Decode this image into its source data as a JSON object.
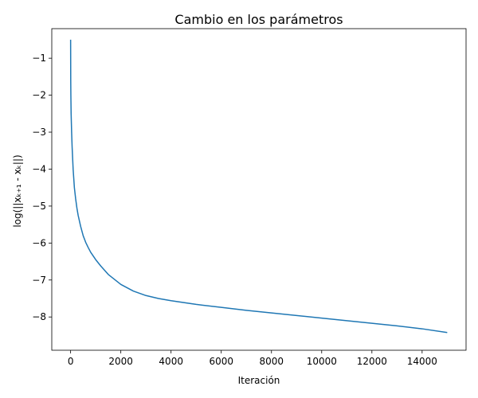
{
  "chart_data": {
    "type": "line",
    "title": "Cambio en los parámetros",
    "xlabel": "Iteración",
    "ylabel": "log(||xₖ₊₁ - xₖ||)",
    "xlim": [
      -750,
      15750
    ],
    "ylim": [
      -8.9,
      -0.2
    ],
    "x_ticks": [
      0,
      2000,
      4000,
      6000,
      8000,
      10000,
      12000,
      14000
    ],
    "x_tick_labels": [
      "0",
      "2000",
      "4000",
      "6000",
      "8000",
      "10000",
      "12000",
      "14000"
    ],
    "y_ticks": [
      -1,
      -2,
      -3,
      -4,
      -5,
      -6,
      -7,
      -8
    ],
    "y_tick_labels": [
      "−1",
      "−2",
      "−3",
      "−4",
      "−5",
      "−6",
      "−7",
      "−8"
    ],
    "grid": false,
    "line_color": "#1f77b4",
    "series": [
      {
        "x": [
          0,
          5,
          10,
          20,
          40,
          60,
          80,
          100,
          150,
          200,
          250,
          300,
          400,
          500,
          600,
          700,
          800,
          1000,
          1200,
          1500,
          2000,
          2500,
          3000,
          3500,
          4000,
          5000,
          6000,
          7000,
          8000,
          9000,
          10000,
          11000,
          12000,
          13000,
          14000,
          15000
        ],
        "y": [
          -0.5,
          -1.6,
          -2.0,
          -2.5,
          -3.0,
          -3.4,
          -3.7,
          -4.0,
          -4.5,
          -4.8,
          -5.05,
          -5.25,
          -5.55,
          -5.8,
          -5.98,
          -6.12,
          -6.25,
          -6.45,
          -6.62,
          -6.85,
          -7.12,
          -7.3,
          -7.42,
          -7.5,
          -7.56,
          -7.66,
          -7.74,
          -7.82,
          -7.89,
          -7.96,
          -8.03,
          -8.1,
          -8.17,
          -8.24,
          -8.32,
          -8.42
        ]
      }
    ]
  }
}
